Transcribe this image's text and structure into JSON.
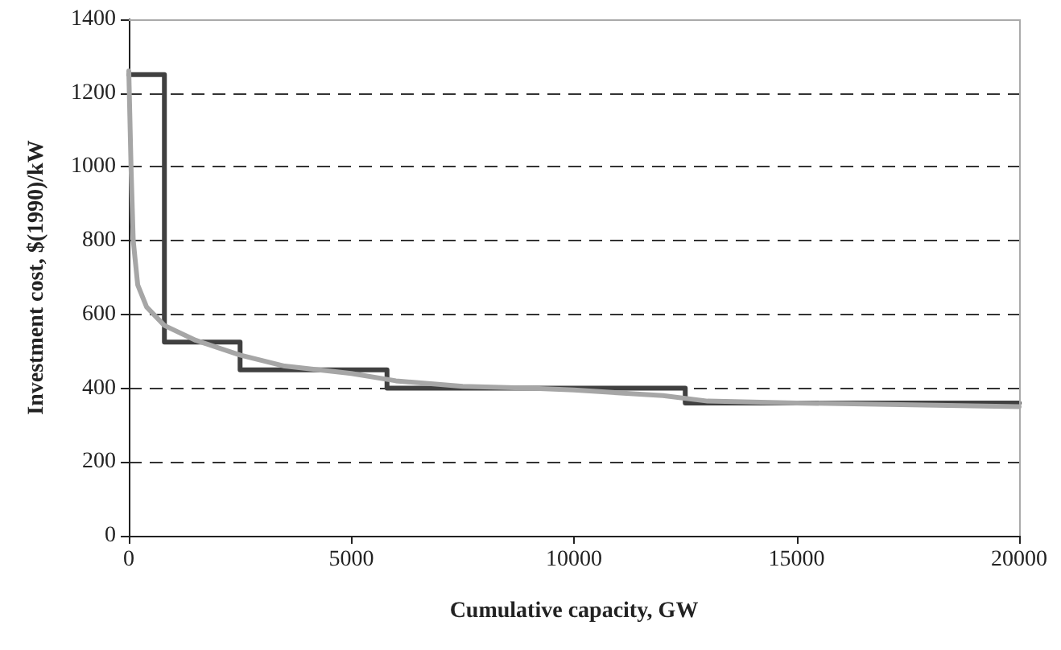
{
  "chart_data": {
    "type": "line",
    "xlabel": "Cumulative capacity, GW",
    "ylabel": "Investment cost, $(1990)/kW",
    "xlim": [
      0,
      20000
    ],
    "xticks": [
      0,
      5000,
      10000,
      15000,
      20000
    ],
    "ylim": [
      0,
      1400
    ],
    "yticks": [
      0,
      200,
      400,
      600,
      800,
      1000,
      1200,
      1400
    ],
    "grid": "y",
    "marker": "none",
    "line_style": "solid",
    "series": [
      {
        "type": "step",
        "color": "#404040",
        "x": [
          0,
          800,
          2500,
          5800,
          12500,
          20000
        ],
        "values": [
          1250,
          525,
          450,
          400,
          360,
          360
        ]
      },
      {
        "color": "#a6a6a6",
        "x": [
          0,
          50,
          100,
          200,
          400,
          800,
          1500,
          2500,
          3500,
          5000,
          6000,
          7500,
          9000,
          10000,
          12000,
          13000,
          15000,
          20000
        ],
        "values": [
          1260,
          1000,
          800,
          680,
          620,
          570,
          530,
          490,
          460,
          440,
          420,
          405,
          400,
          395,
          380,
          365,
          360,
          350
        ]
      }
    ]
  }
}
